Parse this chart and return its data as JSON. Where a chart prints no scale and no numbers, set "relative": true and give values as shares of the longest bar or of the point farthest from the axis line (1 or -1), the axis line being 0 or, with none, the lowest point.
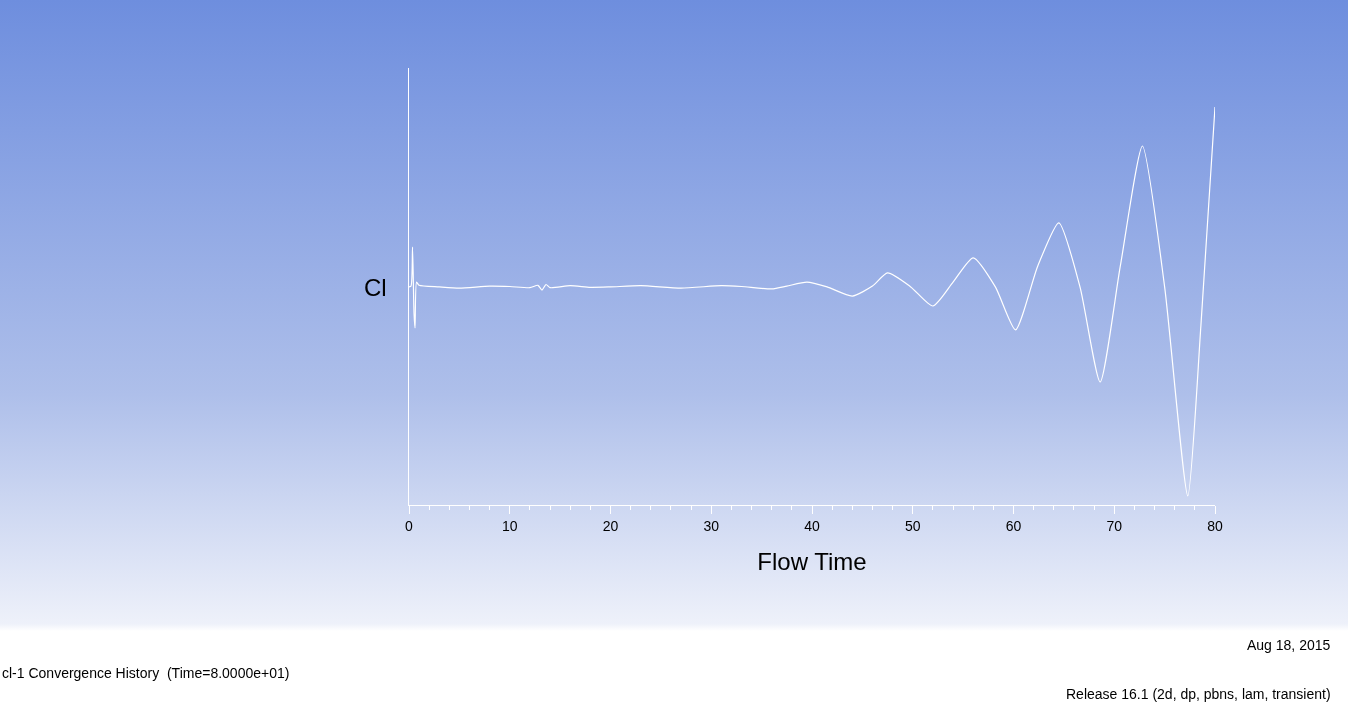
{
  "chart_data": {
    "type": "line",
    "xlabel": "Flow Time",
    "ylabel": "Cl",
    "relative": true,
    "xlim": [
      0,
      80
    ],
    "xticks": [
      0,
      10,
      20,
      30,
      40,
      50,
      60,
      70,
      80
    ],
    "grid": false,
    "marker": "none",
    "line_style": "solid",
    "annotations": [
      "cl-1 Convergence History  (Time=8.0000e+01)",
      "Aug 18, 2015",
      "Release 16.1 (2d, dp, pbns, lam, transient)"
    ],
    "series": [
      {
        "color": "#ffffff",
        "x": [
          0,
          0.2,
          0.35,
          0.5,
          0.6,
          0.75,
          1,
          3,
          5,
          8,
          10,
          12,
          12.8,
          13.2,
          13.6,
          14,
          16,
          18,
          20,
          23,
          27,
          31,
          33,
          36,
          37.5,
          39.5,
          41.5,
          44,
          46,
          47.5,
          49.8,
          52,
          54,
          56,
          58.2,
          60.2,
          62.4,
          64.5,
          66.6,
          68.6,
          70.6,
          72.8,
          75,
          77.3,
          78.6,
          80
        ],
        "values": [
          0.548,
          0.55,
          0.648,
          0.48,
          0.445,
          0.56,
          0.552,
          0.548,
          0.545,
          0.55,
          0.549,
          0.546,
          0.552,
          0.54,
          0.554,
          0.546,
          0.551,
          0.547,
          0.548,
          0.551,
          0.545,
          0.551,
          0.549,
          0.543,
          0.55,
          0.56,
          0.548,
          0.525,
          0.55,
          0.583,
          0.548,
          0.5,
          0.56,
          0.621,
          0.548,
          0.44,
          0.6,
          0.709,
          0.548,
          0.309,
          0.6,
          0.902,
          0.548,
          0.023,
          0.45,
          1.0
        ]
      }
    ]
  }
}
